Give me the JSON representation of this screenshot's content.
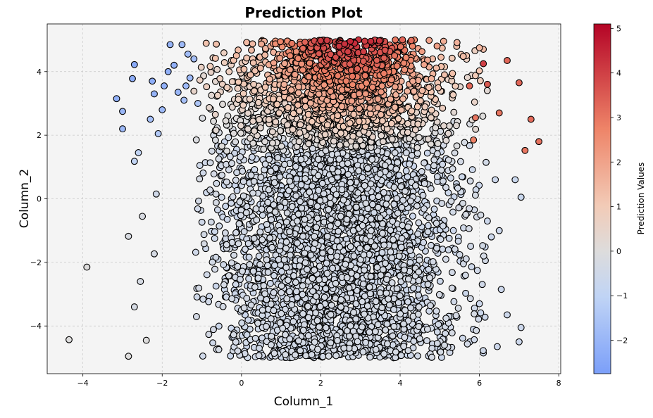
{
  "chart_data": {
    "type": "scatter",
    "title": "Prediction Plot",
    "xlabel": "Column_1",
    "ylabel": "Column_2",
    "xlim": [
      -4.9,
      8.05
    ],
    "ylim": [
      -5.5,
      5.5
    ],
    "xticks": [
      -4,
      -2,
      0,
      2,
      4,
      6,
      8
    ],
    "yticks": [
      -4,
      -2,
      0,
      2,
      4
    ],
    "grid": true,
    "plot_background": "#f4f4f4",
    "marker_edge_color": "#000000",
    "colormap": "coolwarm",
    "colorbar": {
      "label": "Prediction Values",
      "range": [
        -2.75,
        5.1
      ],
      "ticks": [
        -2,
        -1,
        0,
        1,
        2,
        3,
        4,
        5
      ],
      "colors": [
        "#7b9ff9",
        "#c0d4f5",
        "#dddcdc",
        "#f2cbb7",
        "#ee8468",
        "#b40426"
      ]
    },
    "points": [
      {
        "x": -4.35,
        "y": -4.43,
        "v": 0.0
      },
      {
        "x": -3.9,
        "y": -2.15,
        "v": 0.0
      },
      {
        "x": -3.15,
        "y": 3.15,
        "v": -2.2
      },
      {
        "x": -3.0,
        "y": 2.75,
        "v": -2.0
      },
      {
        "x": -3.0,
        "y": 2.2,
        "v": -1.9
      },
      {
        "x": -2.85,
        "y": -4.95,
        "v": 0.0
      },
      {
        "x": -2.85,
        "y": -1.18,
        "v": -0.2
      },
      {
        "x": -2.75,
        "y": 3.78,
        "v": -2.3
      },
      {
        "x": -2.7,
        "y": 4.22,
        "v": -2.4
      },
      {
        "x": -2.7,
        "y": -3.4,
        "v": -0.3
      },
      {
        "x": -2.7,
        "y": 1.18,
        "v": -1.0
      },
      {
        "x": -2.6,
        "y": 1.45,
        "v": -1.0
      },
      {
        "x": -2.55,
        "y": -2.6,
        "v": -0.3
      },
      {
        "x": -2.5,
        "y": -0.55,
        "v": -0.2
      },
      {
        "x": -2.4,
        "y": -4.45,
        "v": 0.0
      },
      {
        "x": -2.3,
        "y": 2.5,
        "v": -1.7
      },
      {
        "x": -2.25,
        "y": 3.7,
        "v": -2.3
      },
      {
        "x": -2.2,
        "y": 3.3,
        "v": -2.1
      },
      {
        "x": -2.2,
        "y": -1.73,
        "v": -0.3
      },
      {
        "x": -2.15,
        "y": 0.15,
        "v": -0.5
      },
      {
        "x": -2.1,
        "y": 2.05,
        "v": -1.4
      },
      {
        "x": -2.0,
        "y": 2.8,
        "v": -1.9
      },
      {
        "x": -1.95,
        "y": 3.55,
        "v": -2.2
      },
      {
        "x": -1.85,
        "y": 4.0,
        "v": -2.2
      },
      {
        "x": -1.8,
        "y": 4.85,
        "v": -2.1
      },
      {
        "x": -1.7,
        "y": 4.2,
        "v": -2.2
      },
      {
        "x": -1.6,
        "y": 3.35,
        "v": -2.0
      },
      {
        "x": -1.5,
        "y": 4.85,
        "v": -1.9
      },
      {
        "x": -1.45,
        "y": 3.1,
        "v": -1.7
      },
      {
        "x": -1.4,
        "y": 3.55,
        "v": -1.9
      },
      {
        "x": -1.35,
        "y": 4.55,
        "v": -1.8
      },
      {
        "x": -1.3,
        "y": 3.8,
        "v": -1.9
      },
      {
        "x": -1.2,
        "y": 4.4,
        "v": -1.7
      },
      {
        "x": -1.1,
        "y": 3.0,
        "v": -1.5
      },
      {
        "x": 6.0,
        "y": 4.75,
        "v": 1.5
      },
      {
        "x": 6.1,
        "y": 4.25,
        "v": 4.0
      },
      {
        "x": 6.2,
        "y": 3.6,
        "v": 3.5
      },
      {
        "x": 6.5,
        "y": 2.7,
        "v": 3.0
      },
      {
        "x": 6.7,
        "y": 4.35,
        "v": 3.3
      },
      {
        "x": 6.9,
        "y": 0.6,
        "v": -0.7
      },
      {
        "x": 7.0,
        "y": 3.65,
        "v": 3.3
      },
      {
        "x": 7.05,
        "y": 0.05,
        "v": -0.7
      },
      {
        "x": 7.15,
        "y": 1.52,
        "v": 3.0
      },
      {
        "x": 7.3,
        "y": 2.5,
        "v": 3.2
      },
      {
        "x": 7.5,
        "y": 1.8,
        "v": 3.1
      },
      {
        "x": 7.0,
        "y": -4.5,
        "v": -0.6
      },
      {
        "x": 7.05,
        "y": -4.05,
        "v": -0.6
      },
      {
        "x": 6.7,
        "y": -3.65,
        "v": -0.6
      },
      {
        "x": 6.55,
        "y": -2.85,
        "v": -0.6
      },
      {
        "x": 6.45,
        "y": -4.65,
        "v": -0.6
      },
      {
        "x": 6.5,
        "y": -1.0,
        "v": -0.6
      },
      {
        "x": 6.3,
        "y": -1.2,
        "v": -0.6
      },
      {
        "x": 6.2,
        "y": -0.7,
        "v": -0.6
      },
      {
        "x": 6.1,
        "y": -4.85,
        "v": -0.6
      },
      {
        "x": 6.0,
        "y": -3.3,
        "v": -0.6
      },
      {
        "x": 6.4,
        "y": 0.6,
        "v": -0.6
      },
      {
        "x": 5.85,
        "y": 1.85,
        "v": 2.8
      },
      {
        "x": 5.9,
        "y": 2.55,
        "v": 3.0
      },
      {
        "x": 5.75,
        "y": 3.55,
        "v": 3.3
      }
    ],
    "cloud": {
      "x_range": [
        -1.0,
        6.0
      ],
      "y_range": [
        -5.0,
        5.0
      ],
      "count": 5200,
      "description_value_rule": "v increases toward upper-right"
    }
  }
}
